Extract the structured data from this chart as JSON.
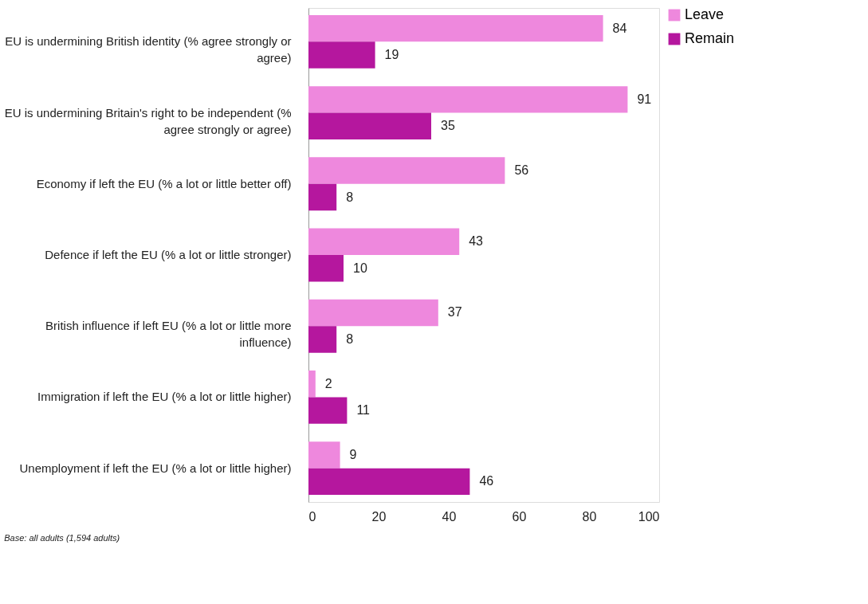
{
  "chart_data": {
    "type": "bar",
    "orientation": "horizontal",
    "categories": [
      "EU is undermining British identity (% agree strongly or agree)",
      "EU is undermining Britain's right to be independent (% agree strongly or agree)",
      "Economy if left the EU (% a lot or little better off)",
      "Defence if left the EU (% a lot or little stronger)",
      "British influence if left EU (% a lot or little more influence)",
      "Immigration if left the EU (% a lot or little higher)",
      "Unemployment if left the EU (% a lot or little higher)"
    ],
    "series": [
      {
        "name": "Leave",
        "color": "#ee88dd",
        "values": [
          84,
          91,
          56,
          43,
          37,
          2,
          9
        ]
      },
      {
        "name": "Remain",
        "color": "#b5179e",
        "values": [
          19,
          35,
          8,
          10,
          8,
          11,
          46
        ]
      }
    ],
    "xlim": [
      0,
      100
    ],
    "xticks": [
      0,
      20,
      40,
      60,
      80,
      100
    ],
    "data_labels": true,
    "legend": "right",
    "grid": false,
    "annotations": [
      "Base: all adults (1,594 adults)"
    ]
  }
}
